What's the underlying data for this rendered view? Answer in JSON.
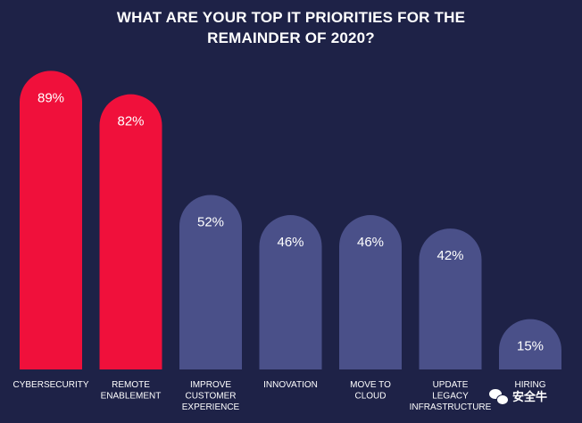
{
  "chart_data": {
    "type": "bar",
    "title_lines": [
      "WHAT ARE YOUR TOP IT PRIORITIES FOR THE",
      "REMAINDER OF 2020?"
    ],
    "categories": [
      [
        "CYBERSECURITY"
      ],
      [
        "REMOTE",
        "ENABLEMENT"
      ],
      [
        "IMPROVE",
        "CUSTOMER",
        "EXPERIENCE"
      ],
      [
        "INNOVATION"
      ],
      [
        "MOVE TO",
        "CLOUD"
      ],
      [
        "UPDATE",
        "LEGACY",
        "INFRASTRUCTURE"
      ],
      [
        "HIRING"
      ]
    ],
    "values": [
      89,
      82,
      52,
      46,
      46,
      42,
      15
    ],
    "data_labels": [
      "89%",
      "82%",
      "52%",
      "46%",
      "46%",
      "42%",
      "15%"
    ],
    "ylim": [
      0,
      100
    ],
    "colors": {
      "highlight": "#f0103b",
      "default": "#4a5089",
      "background": "#1e2247",
      "text": "#ffffff"
    },
    "highlight_count": 2
  },
  "watermark": {
    "icon": "wechat-icon",
    "text": "安全牛"
  }
}
